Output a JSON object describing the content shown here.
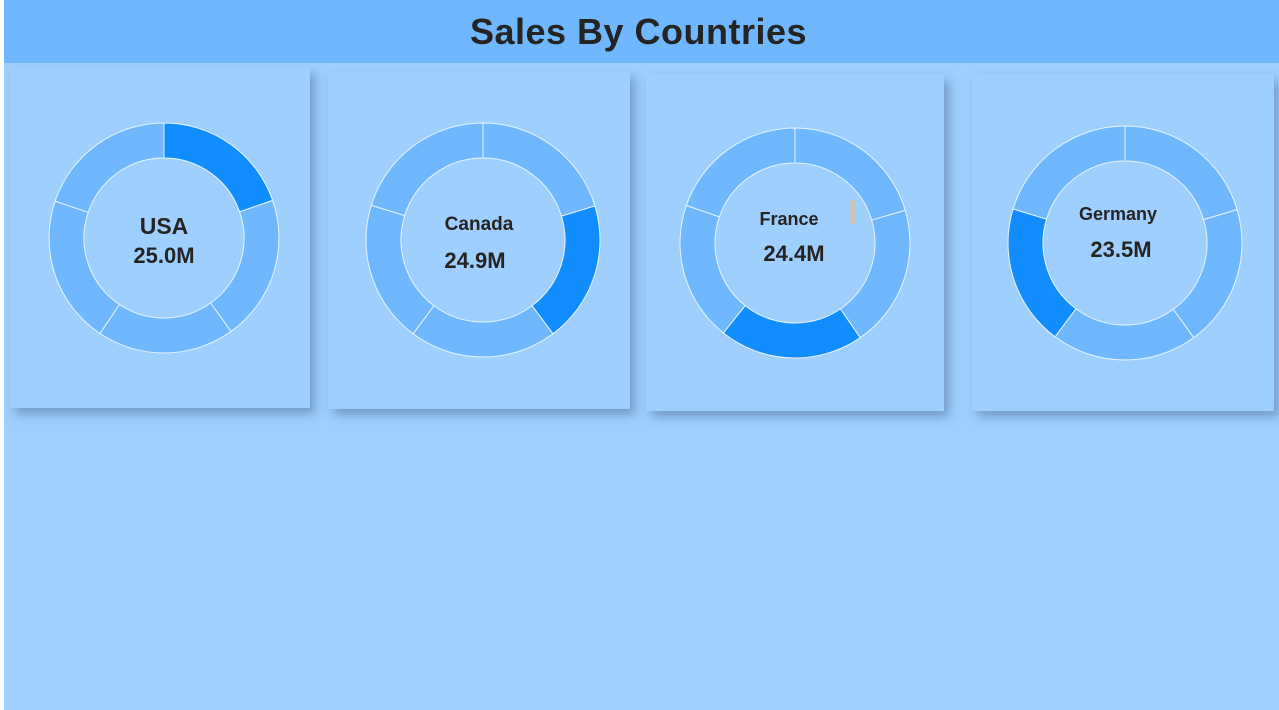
{
  "title": "Sales By Countries",
  "colors": {
    "background": "#a0d0ff",
    "header": "#6fb8ff",
    "card": "#9fcfff",
    "segment": "#6fb8ff",
    "highlight": "#118dff",
    "divider": "#e8f4ff",
    "text": "#252423"
  },
  "chart_data": [
    {
      "type": "pie",
      "variant": "donut",
      "country": "USA",
      "label": "25.0M",
      "segments": [
        19.7,
        20.4,
        19.3,
        20.8,
        19.8
      ],
      "highlight_index": 0
    },
    {
      "type": "pie",
      "variant": "donut",
      "country": "Canada",
      "label": "24.9M",
      "segments": [
        20.3,
        19.5,
        20.4,
        19.6,
        20.2
      ],
      "highlight_index": 1
    },
    {
      "type": "pie",
      "variant": "donut",
      "country": "France",
      "label": "24.4M",
      "segments": [
        20.4,
        20.0,
        20.3,
        19.6,
        19.7
      ],
      "highlight_index": 2
    },
    {
      "type": "pie",
      "variant": "donut",
      "country": "Germany",
      "label": "23.5M",
      "segments": [
        20.4,
        19.6,
        20.2,
        19.5,
        20.3
      ],
      "highlight_index": 3
    }
  ]
}
